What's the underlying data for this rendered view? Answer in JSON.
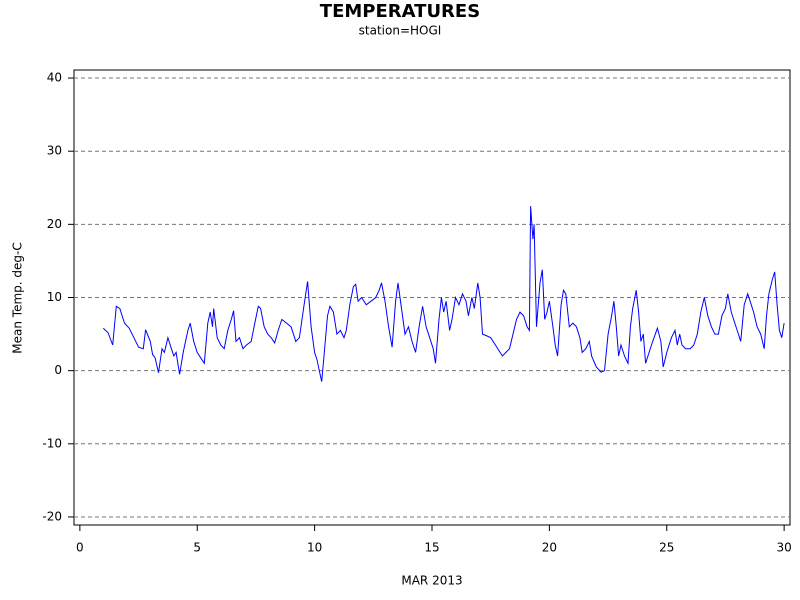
{
  "chart_data": {
    "type": "line",
    "title": "TEMPERATURES",
    "subtitle": "station=HOGI",
    "xlabel": "MAR 2013",
    "ylabel": "Mean Temp. deg-C",
    "xlim": [
      -0.25,
      30.25
    ],
    "ylim": [
      -21.1,
      41.1
    ],
    "xticks": [
      0,
      5,
      10,
      15,
      20,
      25,
      30
    ],
    "yticks": [
      -20,
      -10,
      0,
      10,
      20,
      30,
      40
    ],
    "grid": true,
    "series": [
      {
        "name": "HOGI",
        "color": "#0000ff",
        "x": [
          1.0,
          1.2,
          1.4,
          1.55,
          1.7,
          1.9,
          2.1,
          2.3,
          2.5,
          2.7,
          2.8,
          3.0,
          3.1,
          3.2,
          3.35,
          3.5,
          3.6,
          3.75,
          3.9,
          4.0,
          4.1,
          4.25,
          4.4,
          4.6,
          4.7,
          4.85,
          5.0,
          5.2,
          5.3,
          5.45,
          5.55,
          5.65,
          5.7,
          5.85,
          6.0,
          6.15,
          6.3,
          6.45,
          6.55,
          6.65,
          6.8,
          6.95,
          7.1,
          7.3,
          7.45,
          7.6,
          7.7,
          7.85,
          8.0,
          8.15,
          8.3,
          8.45,
          8.6,
          8.8,
          9.0,
          9.2,
          9.35,
          9.55,
          9.7,
          9.85,
          10.0,
          10.1,
          10.2,
          10.3,
          10.4,
          10.55,
          10.65,
          10.8,
          10.95,
          11.1,
          11.25,
          11.35,
          11.5,
          11.65,
          11.75,
          11.85,
          12.0,
          12.2,
          12.4,
          12.6,
          12.75,
          12.85,
          13.0,
          13.15,
          13.3,
          13.45,
          13.55,
          13.7,
          13.85,
          14.0,
          14.15,
          14.3,
          14.45,
          14.6,
          14.75,
          14.9,
          15.05,
          15.15,
          15.3,
          15.4,
          15.5,
          15.6,
          15.75,
          15.85,
          16.0,
          16.15,
          16.3,
          16.45,
          16.55,
          16.7,
          16.8,
          16.95,
          17.05,
          17.15,
          17.3,
          17.5,
          17.7,
          17.9,
          18.0,
          18.15,
          18.3,
          18.45,
          18.6,
          18.75,
          18.9,
          19.05,
          19.15,
          19.2,
          19.3,
          19.35,
          19.45,
          19.6,
          19.7,
          19.8,
          19.9,
          20.0,
          20.15,
          20.25,
          20.35,
          20.5,
          20.6,
          20.7,
          20.85,
          21.0,
          21.15,
          21.3,
          21.4,
          21.55,
          21.7,
          21.8,
          22.0,
          22.2,
          22.35,
          22.5,
          22.65,
          22.75,
          22.85,
          22.95,
          23.05,
          23.2,
          23.35,
          23.45,
          23.55,
          23.7,
          23.8,
          23.9,
          24.0,
          24.1,
          24.25,
          24.4,
          24.6,
          24.75,
          24.85,
          25.0,
          25.2,
          25.35,
          25.45,
          25.55,
          25.65,
          25.8,
          26.0,
          26.15,
          26.3,
          26.45,
          26.6,
          26.75,
          26.9,
          27.05,
          27.2,
          27.35,
          27.5,
          27.6,
          27.75,
          27.9,
          28.05,
          28.15,
          28.3,
          28.45,
          28.55,
          28.7,
          28.85,
          29.0,
          29.15,
          29.25,
          29.35,
          29.5,
          29.6,
          29.7,
          29.8,
          29.9,
          30.0
        ],
        "values": [
          5.8,
          5.2,
          3.5,
          8.8,
          8.5,
          6.5,
          5.8,
          4.5,
          3.2,
          3.0,
          5.6,
          4.0,
          2.2,
          1.8,
          -0.3,
          3.0,
          2.5,
          4.5,
          3.0,
          2.0,
          2.5,
          -0.5,
          2.5,
          5.5,
          6.5,
          4.0,
          2.5,
          1.5,
          1.0,
          6.5,
          8.0,
          6.0,
          8.5,
          4.5,
          3.5,
          3.0,
          5.5,
          7.0,
          8.2,
          4.0,
          4.5,
          3.0,
          3.5,
          4.0,
          6.5,
          8.8,
          8.5,
          6.0,
          5.0,
          4.5,
          3.8,
          5.5,
          7.0,
          6.5,
          6.0,
          4.0,
          4.5,
          9.0,
          12.2,
          6.0,
          2.5,
          1.5,
          0.0,
          -1.5,
          2.0,
          7.5,
          8.8,
          8.0,
          5.0,
          5.5,
          4.5,
          5.5,
          9.0,
          11.5,
          11.8,
          9.5,
          10.0,
          9.0,
          9.5,
          10.0,
          11.0,
          12.0,
          9.5,
          6.0,
          3.2,
          9.5,
          12.0,
          8.5,
          5.0,
          6.0,
          4.0,
          2.5,
          6.0,
          8.8,
          6.0,
          4.5,
          3.0,
          1.0,
          7.0,
          10.0,
          8.0,
          9.5,
          5.5,
          7.0,
          10.0,
          9.0,
          10.5,
          9.5,
          7.5,
          10.0,
          8.5,
          12.0,
          10.0,
          5.0,
          4.8,
          4.5,
          3.5,
          2.5,
          2.0,
          2.5,
          3.0,
          5.0,
          7.0,
          8.0,
          7.5,
          6.0,
          5.5,
          22.5,
          18.0,
          20.0,
          6.0,
          12.0,
          13.8,
          7.0,
          8.0,
          9.5,
          6.0,
          3.5,
          2.0,
          9.0,
          11.0,
          10.5,
          6.0,
          6.5,
          6.0,
          4.5,
          2.5,
          3.0,
          4.0,
          2.0,
          0.5,
          -0.2,
          0.0,
          5.0,
          7.5,
          9.5,
          6.0,
          2.0,
          3.5,
          2.0,
          1.0,
          6.0,
          8.5,
          11.0,
          8.0,
          4.0,
          5.0,
          1.0,
          2.5,
          4.0,
          5.8,
          4.0,
          0.5,
          2.5,
          4.5,
          5.5,
          3.5,
          5.0,
          3.5,
          3.0,
          3.0,
          3.5,
          5.0,
          8.0,
          10.0,
          7.5,
          6.0,
          5.0,
          5.0,
          7.5,
          8.5,
          10.5,
          8.0,
          6.5,
          5.0,
          4.0,
          9.0,
          10.5,
          9.5,
          8.0,
          6.0,
          5.0,
          3.0,
          7.5,
          10.5,
          12.5,
          13.5,
          9.0,
          5.5,
          4.5,
          6.5
        ]
      }
    ]
  }
}
